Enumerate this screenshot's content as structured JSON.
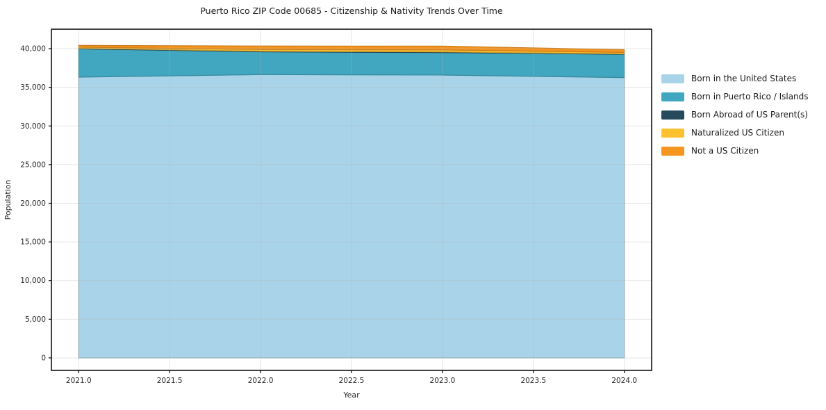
{
  "title": "Puerto Rico ZIP Code 00685 - Citizenship & Nativity Trends Over Time",
  "chart_data": {
    "type": "area",
    "stacked": true,
    "title": "Puerto Rico ZIP Code 00685 - Citizenship & Nativity Trends Over Time",
    "xlabel": "Year",
    "ylabel": "Population",
    "x": [
      2021,
      2022,
      2023,
      2024
    ],
    "series": [
      {
        "name": "Born in the United States",
        "color": "#a8d3e8",
        "values": [
          36320,
          36650,
          36590,
          36260
        ]
      },
      {
        "name": "Born in Puerto Rico / Islands",
        "color": "#41a7c0",
        "values": [
          3660,
          2950,
          2900,
          3020
        ]
      },
      {
        "name": "Born Abroad of US Parent(s)",
        "color": "#27495e",
        "values": [
          70,
          70,
          90,
          50
        ]
      },
      {
        "name": "Naturalized US Citizen",
        "color": "#fdc12f",
        "values": [
          140,
          230,
          260,
          190
        ]
      },
      {
        "name": "Not a US Citizen",
        "color": "#f6951f",
        "values": [
          230,
          440,
          490,
          350
        ]
      }
    ],
    "x_ticks": [
      2021.0,
      2021.5,
      2022.0,
      2022.5,
      2023.0,
      2023.5,
      2024.0
    ],
    "x_tick_labels": [
      "2021.0",
      "2021.5",
      "2022.0",
      "2022.5",
      "2023.0",
      "2023.5",
      "2024.0"
    ],
    "y_ticks": [
      0,
      5000,
      10000,
      15000,
      20000,
      25000,
      30000,
      35000,
      40000
    ],
    "y_tick_labels": [
      "0",
      "5,000",
      "10,000",
      "15,000",
      "20,000",
      "25,000",
      "30,000",
      "35,000",
      "40,000"
    ],
    "xlim": [
      2020.85,
      2024.15
    ],
    "ylim": [
      -1620,
      42520
    ],
    "grid": true,
    "legend_position": "right",
    "axis_color": "#000000",
    "grid_color": "#e6e6e6",
    "text_color": "#262626"
  }
}
